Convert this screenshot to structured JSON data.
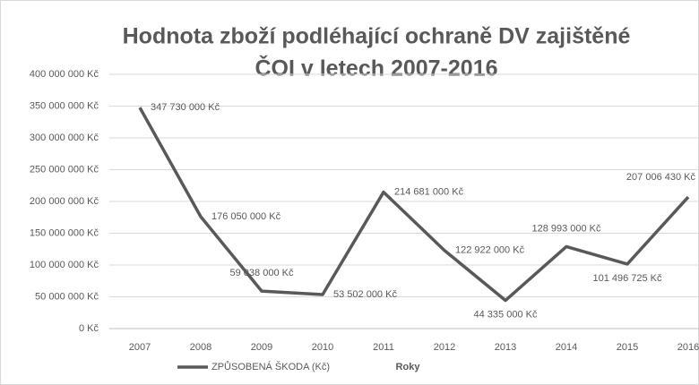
{
  "chart_data": {
    "type": "line",
    "title": [
      "Hodnota zboží podléhající ochraně DV zajištěné",
      "ČOI v letech 2007-2016"
    ],
    "x_label": "Roky",
    "categories": [
      "2007",
      "2008",
      "2009",
      "2010",
      "2011",
      "2012",
      "2013",
      "2014",
      "2015",
      "2016"
    ],
    "series": [
      {
        "name": "ZPŮSOBENÁ ŠKODA (Kč)",
        "color": "#595959",
        "values": [
          347730000,
          176050000,
          59038000,
          53502000,
          214681000,
          122922000,
          44335000,
          128993000,
          101496725,
          207006430
        ],
        "value_labels": [
          "347 730 000 Kč",
          "176 050 000 Kč",
          "59 038 000 Kč",
          "53 502 000 Kč",
          "214 681 000 Kč",
          "122 922 000 Kč",
          "44 335 000 Kč",
          "128 993 000 Kč",
          "101 496 725 Kč",
          "207 006 430 Kč"
        ]
      }
    ],
    "ylim": [
      0,
      400000000
    ],
    "yticks": [
      {
        "value": 0,
        "label": "0 Kč"
      },
      {
        "value": 50000000,
        "label": "50 000 000 Kč"
      },
      {
        "value": 100000000,
        "label": "100 000 000 Kč"
      },
      {
        "value": 150000000,
        "label": "150 000 000 Kč"
      },
      {
        "value": 200000000,
        "label": "200 000 000 Kč"
      },
      {
        "value": 250000000,
        "label": "250 000 000 Kč"
      },
      {
        "value": 300000000,
        "label": "300 000 000 Kč"
      },
      {
        "value": 350000000,
        "label": "350 000 000 Kč"
      },
      {
        "value": 400000000,
        "label": "400 000 000 Kč"
      }
    ],
    "grid": true,
    "legend": "bottom"
  }
}
